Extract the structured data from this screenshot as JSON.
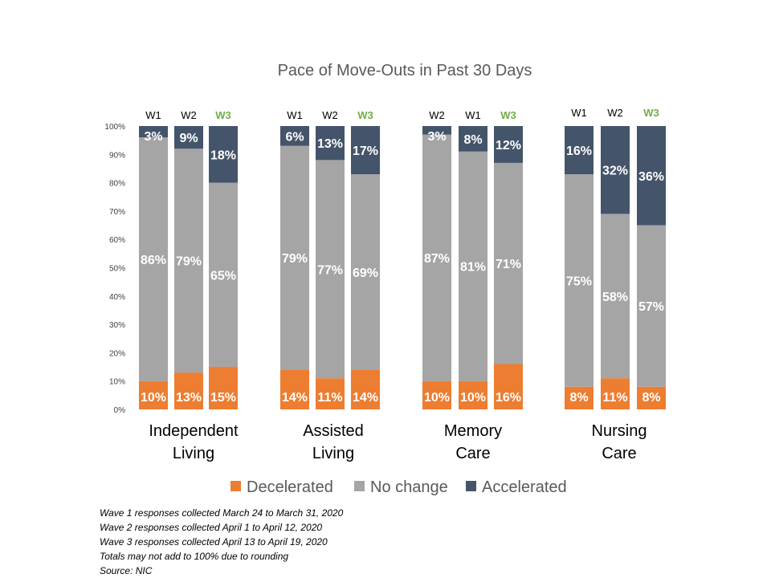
{
  "chart_data": {
    "type": "bar",
    "stacked": true,
    "percent": true,
    "title": "Pace of Move-Outs in Past 30 Days",
    "ylim": [
      0,
      100
    ],
    "y_ticks": [
      "0%",
      "10%",
      "20%",
      "30%",
      "40%",
      "50%",
      "60%",
      "70%",
      "80%",
      "90%",
      "100%"
    ],
    "highlight_color": "#70AD47",
    "series_order": [
      "Decelerated",
      "No change",
      "Accelerated"
    ],
    "colors": {
      "Decelerated": "#ED7D31",
      "No change": "#A5A5A5",
      "Accelerated": "#44546A"
    },
    "groups": [
      {
        "label_lines": [
          "Independent",
          "Living"
        ],
        "bars": [
          {
            "wave": "W1",
            "highlight": false,
            "values": [
              10,
              86,
              3
            ],
            "labels": [
              "10%",
              "86%",
              "3%"
            ]
          },
          {
            "wave": "W2",
            "highlight": false,
            "values": [
              13,
              79,
              9
            ],
            "labels": [
              "13%",
              "79%",
              "9%"
            ]
          },
          {
            "wave": "W3",
            "highlight": true,
            "values": [
              15,
              65,
              18
            ],
            "labels": [
              "15%",
              "65%",
              "18%"
            ]
          }
        ]
      },
      {
        "label_lines": [
          "Assisted",
          "Living"
        ],
        "bars": [
          {
            "wave": "W1",
            "highlight": false,
            "values": [
              14,
              79,
              6
            ],
            "labels": [
              "14%",
              "79%",
              "6%"
            ]
          },
          {
            "wave": "W2",
            "highlight": false,
            "values": [
              11,
              77,
              13
            ],
            "labels": [
              "11%",
              "77%",
              "13%"
            ]
          },
          {
            "wave": "W3",
            "highlight": true,
            "values": [
              14,
              69,
              17
            ],
            "labels": [
              "14%",
              "69%",
              "17%"
            ]
          }
        ]
      },
      {
        "label_lines": [
          "Memory",
          "Care"
        ],
        "bars": [
          {
            "wave": "W2",
            "highlight": false,
            "values": [
              10,
              87,
              3
            ],
            "labels": [
              "10%",
              "87%",
              "3%"
            ]
          },
          {
            "wave": "W1",
            "highlight": false,
            "values": [
              10,
              81,
              8
            ],
            "labels": [
              "10%",
              "81%",
              "8%"
            ]
          },
          {
            "wave": "W3",
            "highlight": true,
            "values": [
              16,
              71,
              12
            ],
            "labels": [
              "16%",
              "71%",
              "12%"
            ]
          }
        ]
      },
      {
        "label_lines": [
          "Nursing",
          "Care"
        ],
        "bars": [
          {
            "wave": "W1",
            "highlight": false,
            "values": [
              8,
              75,
              16
            ],
            "labels": [
              "8%",
              "75%",
              "16%"
            ]
          },
          {
            "wave": "W2",
            "highlight": false,
            "values": [
              11,
              58,
              32
            ],
            "labels": [
              "11%",
              "58%",
              "32%"
            ]
          },
          {
            "wave": "W3",
            "highlight": true,
            "values": [
              8,
              57,
              36
            ],
            "labels": [
              "8%",
              "57%",
              "36%"
            ]
          }
        ]
      }
    ],
    "legend": {
      "position": "bottom",
      "items": [
        "Decelerated",
        "No change",
        "Accelerated"
      ]
    }
  },
  "notes": [
    "Wave 1 responses collected March 24 to March 31, 2020",
    "Wave 2 responses collected April 1 to April 12, 2020",
    "Wave 3 responses collected April 13 to April 19, 2020",
    "Totals may not add to 100% due to rounding",
    "Source: NIC"
  ]
}
